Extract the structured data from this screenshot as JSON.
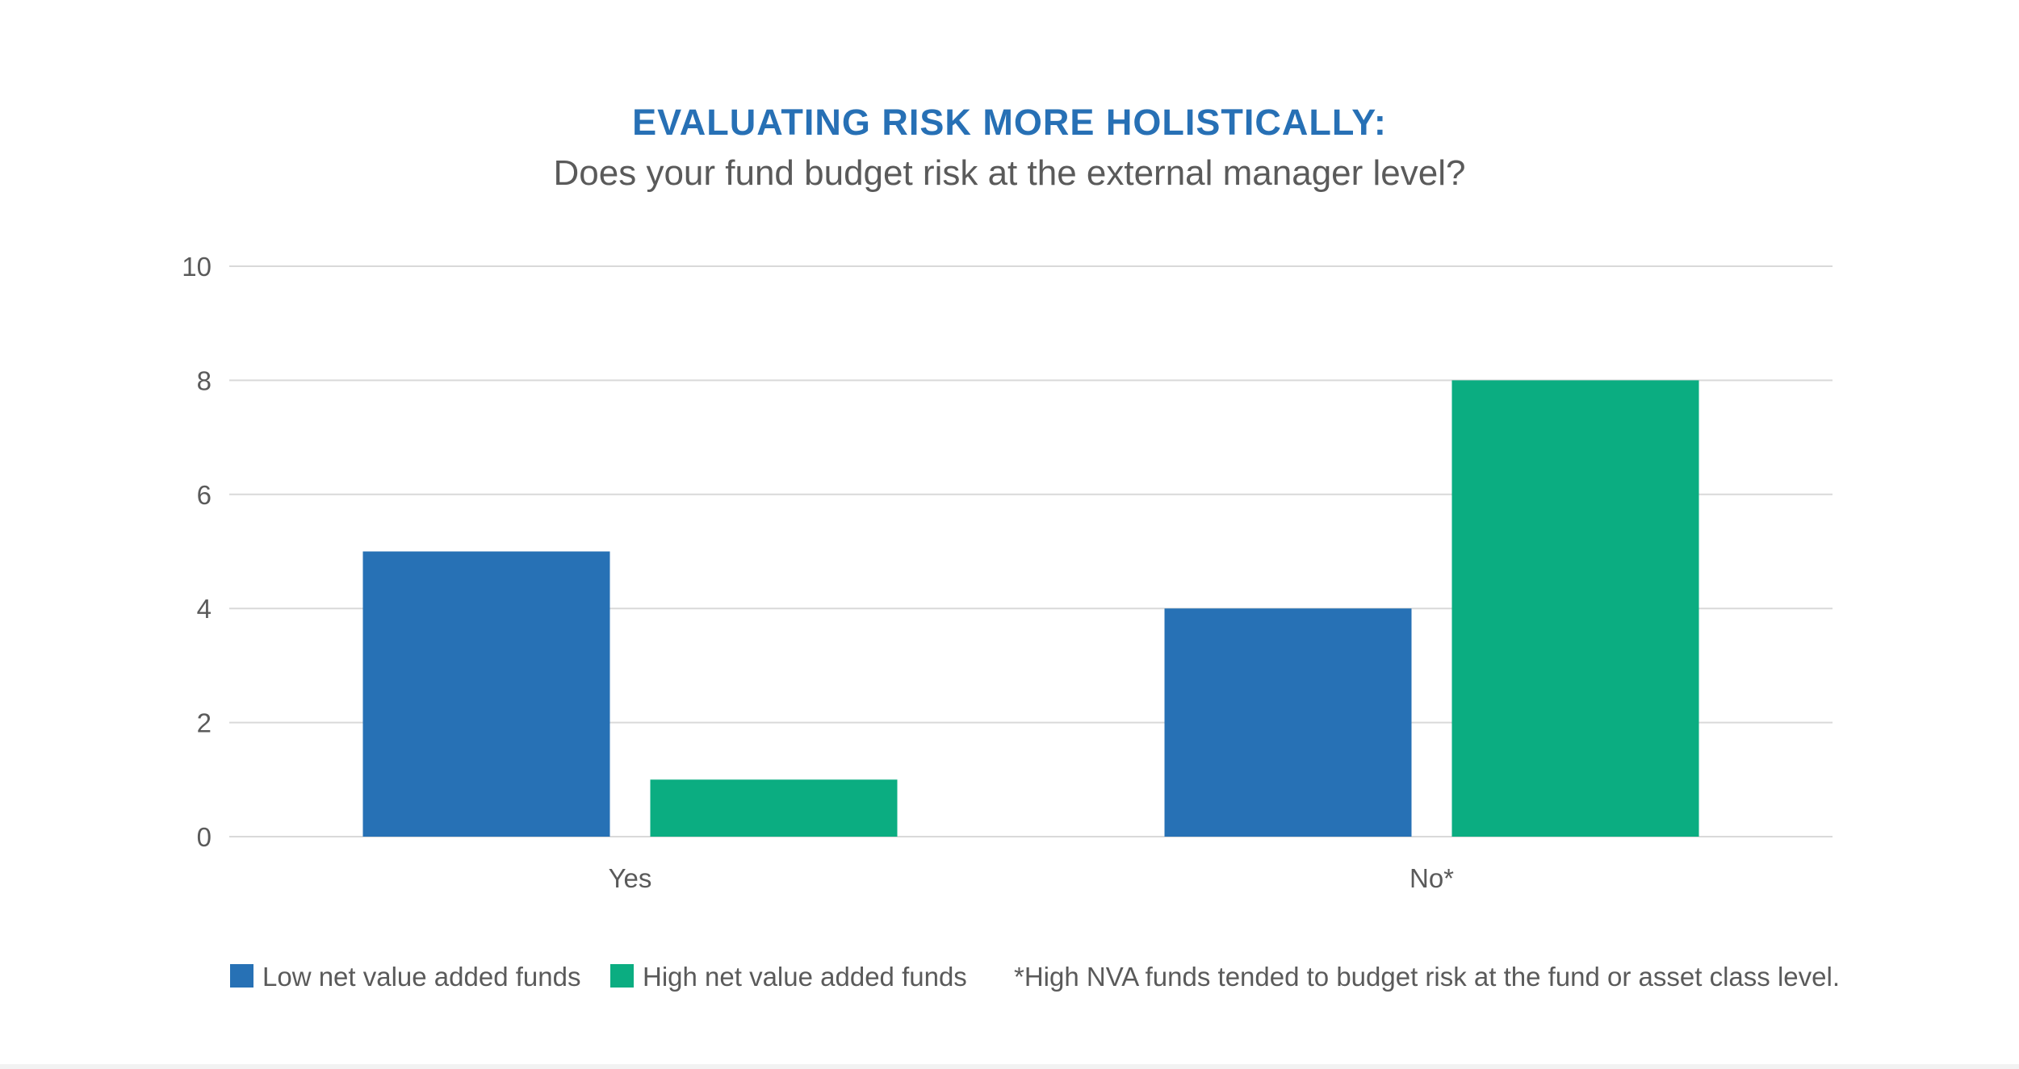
{
  "chart_data": {
    "type": "bar",
    "title": "EVALUATING RISK MORE HOLISTICALLY:",
    "subtitle": "Does your fund budget risk at the external manager level?",
    "categories": [
      "Yes",
      "No*"
    ],
    "series": [
      {
        "name": "Low net value added funds",
        "values": [
          5,
          4
        ],
        "color": "#2771b5"
      },
      {
        "name": "High net value added funds",
        "values": [
          1,
          8
        ],
        "color": "#0bad81"
      }
    ],
    "ylim": [
      0,
      10
    ],
    "yticks": [
      0,
      2,
      4,
      6,
      8,
      10
    ],
    "grid": true,
    "legend_position": "bottom-left",
    "note": "*High NVA funds tended to budget risk at the fund or asset class level.",
    "colors": {
      "title": "#2770b5",
      "text": "#5a5a5a",
      "grid": "#d9d9d9"
    }
  }
}
